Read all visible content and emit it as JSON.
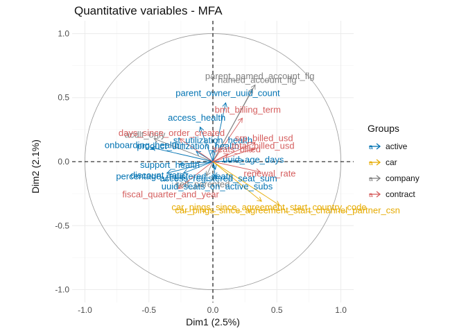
{
  "chart_data": {
    "type": "scatter",
    "title": "Quantitative variables - MFA",
    "xlabel": "Dim1 (2.5%)",
    "ylabel": "Dim2 (2.1%)",
    "xlim": [
      -1.1,
      1.1
    ],
    "ylim": [
      -1.1,
      1.1
    ],
    "x_ticks": [
      -1.0,
      -0.5,
      0.0,
      0.5,
      1.0
    ],
    "y_ticks": [
      -1.0,
      -0.5,
      0.0,
      0.5,
      1.0
    ],
    "x_tick_labels": [
      "-1.0",
      "-0.5",
      "0.0",
      "0.5",
      "1.0"
    ],
    "y_tick_labels": [
      "-1.0",
      "-0.5",
      "0.0",
      "0.5",
      "1.0"
    ],
    "grid": true,
    "unit_circle": true,
    "reference_lines": [
      0,
      0
    ],
    "legend": {
      "title": "Groups",
      "position": "right",
      "items": [
        {
          "name": "active",
          "color": "#0072B2"
        },
        {
          "name": "car",
          "color": "#E6AB02"
        },
        {
          "name": "company",
          "color": "#808080"
        },
        {
          "name": "contract",
          "color": "#D55E5E"
        }
      ]
    },
    "variables": [
      {
        "name": "parent_named_account_flg",
        "group": "company",
        "x": 0.33,
        "y": 0.6
      },
      {
        "name": "named_account_flg",
        "group": "company",
        "x": 0.31,
        "y": 0.57
      },
      {
        "name": "acdlt_only",
        "group": "company",
        "x": -0.46,
        "y": 0.18
      },
      {
        "name": "self_parented",
        "group": "company",
        "x": -0.05,
        "y": -0.11
      },
      {
        "name": "parent_owner_uuid_count",
        "group": "active",
        "x": 0.1,
        "y": 0.46
      },
      {
        "name": "onboarding_health",
        "group": "active",
        "x": -0.48,
        "y": 0.11
      },
      {
        "name": "access_health",
        "group": "active",
        "x": -0.1,
        "y": 0.27
      },
      {
        "name": "product_utilization_health",
        "group": "active",
        "x": -0.13,
        "y": 0.08
      },
      {
        "name": "support_health",
        "group": "active",
        "x": -0.26,
        "y": -0.02
      },
      {
        "name": "discount_rate",
        "group": "active",
        "x": -0.36,
        "y": -0.09
      },
      {
        "name": "access_registered_seat_sum",
        "group": "active",
        "x": 0.02,
        "y": -0.06
      },
      {
        "name": "uuid_age_days",
        "group": "active",
        "x": 0.24,
        "y": 0.01
      },
      {
        "name": "uuid_seats_on_active_subs",
        "group": "active",
        "x": 0.02,
        "y": -0.12
      },
      {
        "name": "percentage_registered_seats",
        "group": "active",
        "x": -0.23,
        "y": -0.09
      },
      {
        "name": "st_utilization_health",
        "group": "active",
        "x": 0.0,
        "y": 0.09
      },
      {
        "name": "bmt_billing_term",
        "group": "contract",
        "x": 0.23,
        "y": 0.34
      },
      {
        "name": "days_since_order_created",
        "group": "contract",
        "x": -0.26,
        "y": 0.18
      },
      {
        "name": "srp_billed_usd",
        "group": "contract",
        "x": 0.33,
        "y": 0.15
      },
      {
        "name": "total_billed_usd",
        "group": "contract",
        "x": 0.32,
        "y": 0.1
      },
      {
        "name": "seats_billed",
        "group": "contract",
        "x": 0.12,
        "y": 0.06
      },
      {
        "name": "renewal_rate",
        "group": "contract",
        "x": 0.37,
        "y": -0.08
      },
      {
        "name": "fiscal_quarter_and_year",
        "group": "contract",
        "x": -0.27,
        "y": -0.21
      },
      {
        "name": "car_pings_since_agreement_start_channel_partner_csn",
        "group": "car",
        "x": 0.52,
        "y": -0.34
      },
      {
        "name": "car_pings_since_agreement_start_country_code",
        "group": "car",
        "x": 0.38,
        "y": -0.31
      }
    ]
  }
}
